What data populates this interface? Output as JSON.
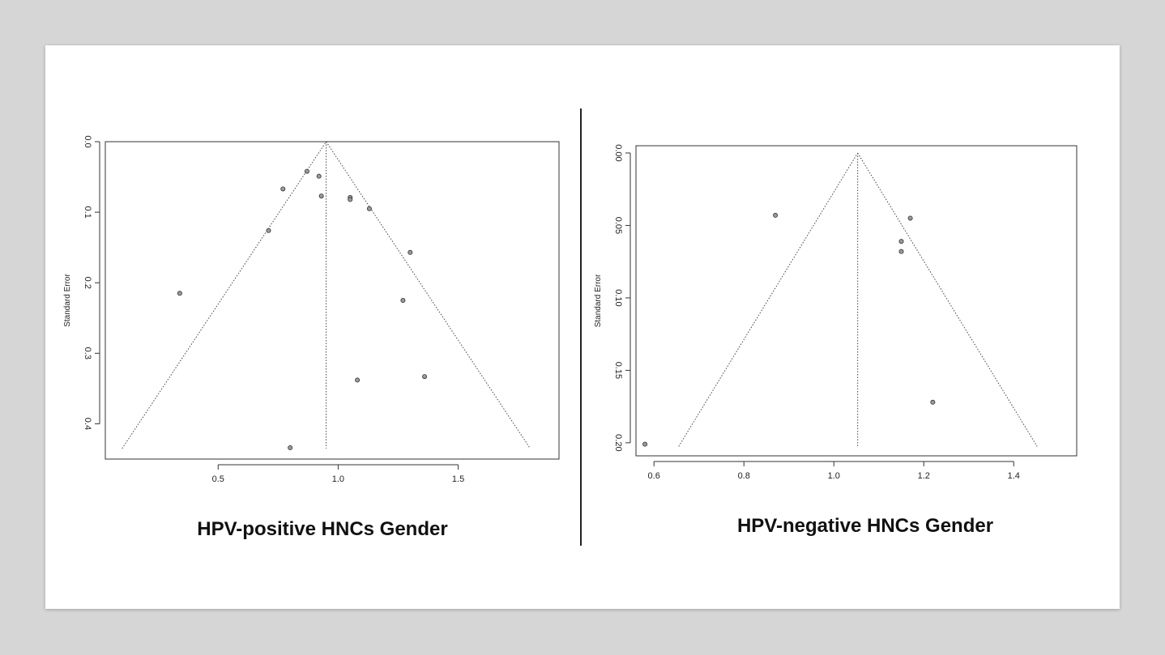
{
  "chart_data": [
    {
      "type": "scatter",
      "title": "HPV-positive HNCs Gender",
      "ylabel": "Standard Error",
      "xlabel": "",
      "xlim": [
        0.03,
        1.92
      ],
      "ylim": [
        0.0,
        0.45
      ],
      "y_reversed": true,
      "xticks": [
        0.5,
        1.0,
        1.5
      ],
      "xtick_labels": [
        "0.5",
        "1.0",
        "1.5"
      ],
      "yticks": [
        0.0,
        0.1,
        0.2,
        0.3,
        0.4
      ],
      "ytick_labels": [
        "0.0",
        "0.1",
        "0.2",
        "0.3",
        "0.4"
      ],
      "funnel": {
        "center": 0.95,
        "apex_se": 0.0,
        "bottom_se": 0.435,
        "left_x": 0.1,
        "right_x": 1.8
      },
      "points": [
        {
          "x": 0.87,
          "y": 0.042
        },
        {
          "x": 0.92,
          "y": 0.049
        },
        {
          "x": 0.77,
          "y": 0.067
        },
        {
          "x": 0.93,
          "y": 0.077
        },
        {
          "x": 1.05,
          "y": 0.079
        },
        {
          "x": 1.05,
          "y": 0.082
        },
        {
          "x": 1.13,
          "y": 0.095
        },
        {
          "x": 0.71,
          "y": 0.126
        },
        {
          "x": 1.3,
          "y": 0.157
        },
        {
          "x": 0.34,
          "y": 0.215
        },
        {
          "x": 1.27,
          "y": 0.225
        },
        {
          "x": 1.36,
          "y": 0.333
        },
        {
          "x": 1.08,
          "y": 0.338
        },
        {
          "x": 0.8,
          "y": 0.434
        }
      ]
    },
    {
      "type": "scatter",
      "title": "HPV-negative HNCs Gender",
      "ylabel": "Standard Error",
      "xlabel": "",
      "xlim": [
        0.56,
        1.54
      ],
      "ylim": [
        -0.005,
        0.209
      ],
      "y_reversed": true,
      "xticks": [
        0.6,
        0.8,
        1.0,
        1.2,
        1.4
      ],
      "xtick_labels": [
        "0.6",
        "0.8",
        "1.0",
        "1.2",
        "1.4"
      ],
      "yticks": [
        0.0,
        0.05,
        0.1,
        0.15,
        0.2
      ],
      "ytick_labels": [
        "0.00",
        "0.05",
        "0.10",
        "0.15",
        "0.20"
      ],
      "funnel": {
        "center": 1.053,
        "apex_se": 0.0,
        "bottom_se": 0.2025,
        "left_x": 0.655,
        "right_x": 1.452
      },
      "points": [
        {
          "x": 0.87,
          "y": 0.043
        },
        {
          "x": 1.17,
          "y": 0.045
        },
        {
          "x": 1.15,
          "y": 0.061
        },
        {
          "x": 1.15,
          "y": 0.068
        },
        {
          "x": 1.22,
          "y": 0.172
        },
        {
          "x": 0.58,
          "y": 0.201
        }
      ]
    }
  ]
}
